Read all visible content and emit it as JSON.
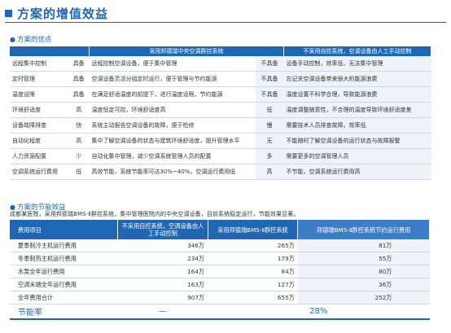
{
  "header": {
    "title": "方案的增值效益"
  },
  "advantages": {
    "heading": "方案的优点",
    "col_with": "采用邦德瑞中央空调群控系统",
    "col_without": "不采用自控系统，空调设备由人工手动控制",
    "rows": [
      {
        "feature": "远程集中控制",
        "level_with": "具备",
        "desc_with": "远程控制空调设备，便于集中管理",
        "level_without": "不具备",
        "desc_without": "设备手动控制，效率低、无法集中管理"
      },
      {
        "feature": "定时管理",
        "level_with": "具备",
        "desc_with": "空调设备灵活分组定时运行，便于管理与节约能源",
        "level_without": "不具备",
        "desc_without": "忘记关空调设备带来很大的能源浪费"
      },
      {
        "feature": "温度设限",
        "level_with": "具备",
        "desc_with": "在满足舒适温度的前提下，进行温度设限，节约能源",
        "level_without": "不具备",
        "desc_without": "温度设置不科学合理，导致能源浪费"
      },
      {
        "feature": "环境舒适度",
        "level_with": "高",
        "desc_with": "温度恒定可控，环境舒适度高",
        "level_without": "低",
        "desc_without": "温度调整随意性，不合理的温度导致环境舒适度差"
      },
      {
        "feature": "设备故障排查",
        "level_with": "快",
        "desc_with": "系统主动报告空调设备的故障，便于检修",
        "level_without": "慢",
        "desc_without": "需要技术人员排查故障，效率低"
      },
      {
        "feature": "自动化程度",
        "level_with": "高",
        "desc_with": "集中了解空调设备的状态与建筑环境舒适度，提升管理水平",
        "level_without": "无",
        "desc_without": "不能随时了解空调设备的运行状态与故障报警"
      },
      {
        "feature": "人力资源配置",
        "level_with": "少",
        "desc_with": "自动化集中管理，减少空调系统管理人员的配置",
        "level_without": "多",
        "desc_without": "需要更多的空调管理人员"
      },
      {
        "feature": "空调系统运行费用",
        "level_with": "低",
        "desc_with": "高效节能，系统节能率可达30%~40%，空调运行费用低",
        "level_without": "高",
        "desc_without": "不节能，空调系统运行费用高"
      }
    ]
  },
  "savings": {
    "heading": "方案的节能效益",
    "intro": "成都某医院，采用邦德瑞BMS-Ⅱ群控系统，集中管理医院内的中央空调设备，目前系统稳定运行，节能效果显著。",
    "headers": [
      "费用项目",
      "不采用自控系统，空调设备由人工手动控制",
      "采用邦德瑞BMS-Ⅱ群控系统",
      "邦德瑞BMS-Ⅱ群控系统节约运行费用"
    ],
    "rows": [
      {
        "item": "夏季制冷主机运行费用",
        "without": "346万",
        "with": "265万",
        "saved": "81万"
      },
      {
        "item": "冬季制热主机运行费用",
        "without": "234万",
        "with": "179万",
        "saved": "55万"
      },
      {
        "item": "水泵全年运行费用",
        "without": "164万",
        "with": "84万",
        "saved": "80万"
      },
      {
        "item": "空调末端全年运行费用",
        "without": "163万",
        "with": "127万",
        "saved": "36万"
      },
      {
        "item": "全年费用合计",
        "without": "907万",
        "with": "655万",
        "saved": "252万"
      }
    ],
    "rate_label": "节能率",
    "rate_dash": "—",
    "rate_value": "28%"
  }
}
